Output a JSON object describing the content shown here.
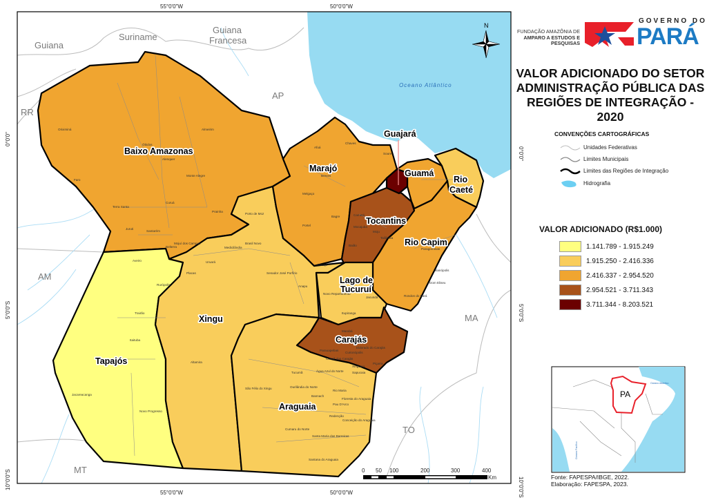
{
  "title": [
    "VALOR ADICIONADO DO SETOR",
    "ADMINISTRAÇÃO PÚBLICA DAS",
    "REGIÕES DE INTEGRAÇÃO - 2020"
  ],
  "logos": {
    "fapespa": [
      "FUNDAÇÃO AMAZÔNIA DE",
      "AMPARO A ESTUDOS E",
      "PESQUISAS"
    ],
    "governo_top": "GOVERNO DO",
    "governo_main": "PARÁ"
  },
  "coordinates": {
    "top": [
      "55°0'0\"W",
      "50°0'0\"W"
    ],
    "bottom": [
      "55°0'0\"W",
      "50°0'0\"W"
    ],
    "left": [
      "0°0'0\"",
      "5°0'0\"S",
      "10°0'0\"S"
    ],
    "right": [
      "0°0'0\"",
      "5°0'0\"S",
      "10°0'0\"S"
    ]
  },
  "north_arrow": "N",
  "neighbors": [
    "Guiana",
    "Suriname",
    "Guiana",
    "Francesa",
    "AP",
    "RR",
    "AM",
    "MT",
    "TO",
    "MA"
  ],
  "ocean_label": "Oceano Atlântico",
  "conventions": {
    "title": "CONVENÇÕES CARTOGRÁFICAS",
    "items": [
      "Unidades Federativas",
      "Limites Municipais",
      "Limites das Regiões de Integração",
      "Hidrografia"
    ]
  },
  "legend": {
    "title": "VALOR ADICIONADO (R$1.000)",
    "classes": [
      {
        "label": "1.141.789 - 1.915.249",
        "color": "#ffff80"
      },
      {
        "label": "1.915.250 - 2.416.336",
        "color": "#f9cd5b"
      },
      {
        "label": "2.416.337 - 2.954.520",
        "color": "#f0a530"
      },
      {
        "label": "2.954.521 - 3.711.343",
        "color": "#a8521a"
      },
      {
        "label": "3.711.344 - 8.203.521",
        "color": "#6b0000"
      }
    ]
  },
  "regions": [
    {
      "name": "Baixo Amazonas",
      "class": 2
    },
    {
      "name": "Tapajós",
      "class": 0
    },
    {
      "name": "Xingu",
      "class": 1
    },
    {
      "name": "Marajó",
      "class": 2
    },
    {
      "name": "Guajará",
      "class": 4
    },
    {
      "name": "Tocantins",
      "class": 3
    },
    {
      "name": "Guamá",
      "class": 2
    },
    {
      "name": "Rio",
      "class": 1
    },
    {
      "name": "Caeté",
      "class": 1
    },
    {
      "name": "Rio Capim",
      "class": 2
    },
    {
      "name": "Lago de",
      "class": 1
    },
    {
      "name": "Tucuruí",
      "class": 1
    },
    {
      "name": "Carajás",
      "class": 3
    },
    {
      "name": "Araguaia",
      "class": 1
    }
  ],
  "municipalities": [
    "Oriximiná",
    "Óbidos",
    "Alenquer",
    "Almeirim",
    "Faro",
    "Monte Alegre",
    "Terra Santa",
    "Curuá",
    "Prainha",
    "Juruti",
    "Santarém",
    "Mojuí dos Campos",
    "Belterra",
    "Porto de Moz",
    "Medicilândia",
    "Brasil Novo",
    "Uruará",
    "Placas",
    "Senador José Porfírio",
    "Pacajá",
    "Anapu",
    "Altamira",
    "Aveiro",
    "Rurópolis",
    "Trairão",
    "Itaituba",
    "Jacareacanga",
    "Novo Progresso",
    "Novo Repartimento",
    "Itupiranga",
    "Marabá",
    "Parauapebas",
    "Canaã dos Carajás",
    "Eldorado do Carajás",
    "Tucumã",
    "Água Azul do Norte",
    "Ourilândia do Norte",
    "Rio Maria",
    "São Félix do Xingu",
    "Redenção",
    "Cumaru do Norte",
    "Santana do Araguaia",
    "Santa Maria das Barreiras",
    "Chaves",
    "Afuá",
    "Breves",
    "Portel",
    "Melgaço",
    "Soure",
    "Bagre",
    "Paragominas",
    "Ulianópolis",
    "Dom Eliseu",
    "Rondon do Pará",
    "Curionópolis",
    "Pau D'Arco",
    "Floresta do Araguaia",
    "Conceição do Araguaia",
    "Bannach",
    "Xinguara",
    "Sapucaia",
    "Piçarra",
    "Moju",
    "Tailândia",
    "Cametá",
    "Mocajuba",
    "Baião",
    "Jacundá"
  ],
  "scale": {
    "ticks": [
      "0",
      "50",
      "100",
      "200",
      "300",
      "400"
    ],
    "unit": "Km"
  },
  "inset": {
    "label": "PA",
    "ocean1": "Oceano Atlântico",
    "ocean2": "Oceano Pacífico"
  },
  "source": [
    "Fonte: FAPESPA/IBGE, 2022.",
    "Elaboração: FAPESPA, 2023."
  ],
  "colors": {
    "ocean": "#97dbf2",
    "border": "#000000",
    "highlight": "#e8202a"
  }
}
